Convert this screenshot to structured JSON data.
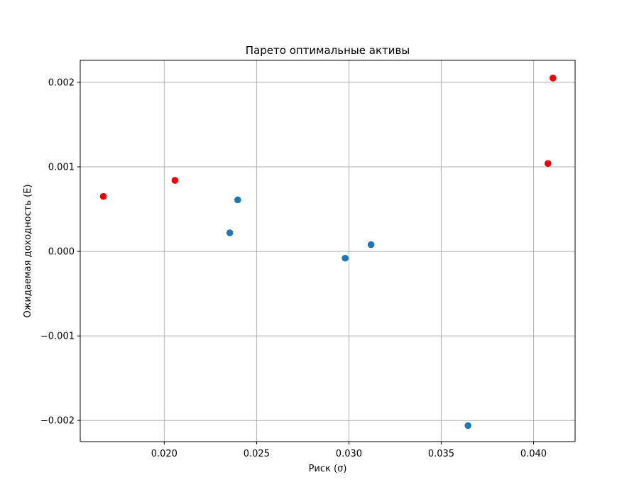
{
  "chart_data": {
    "type": "scatter",
    "title": "Парето оптимальные активы",
    "xlabel": "Риск (σ)",
    "ylabel": "Ожидаемая доходность (E)",
    "xlim": [
      0.01545,
      0.04225
    ],
    "ylim": [
      -0.00225,
      0.00226
    ],
    "xticks": [
      0.02,
      0.025,
      0.03,
      0.035,
      0.04
    ],
    "xtick_labels": [
      "0.020",
      "0.025",
      "0.030",
      "0.035",
      "0.040"
    ],
    "yticks": [
      -0.002,
      -0.001,
      0.0,
      0.001,
      0.002
    ],
    "ytick_labels": [
      "−0.002",
      "−0.001",
      "0.000",
      "0.001",
      "0.002"
    ],
    "grid": true,
    "series": [
      {
        "color": "#1f77b4",
        "points": [
          {
            "x": 0.02355,
            "y": 0.00022
          },
          {
            "x": 0.02398,
            "y": 0.00061
          },
          {
            "x": 0.0298,
            "y": -8e-05
          },
          {
            "x": 0.0312,
            "y": 8e-05
          },
          {
            "x": 0.03645,
            "y": -0.00206
          }
        ]
      },
      {
        "color": "#ee0000",
        "points": [
          {
            "x": 0.0167,
            "y": 0.00065
          },
          {
            "x": 0.02058,
            "y": 0.00084
          },
          {
            "x": 0.04078,
            "y": 0.00104
          },
          {
            "x": 0.04105,
            "y": 0.00205
          }
        ]
      }
    ]
  }
}
